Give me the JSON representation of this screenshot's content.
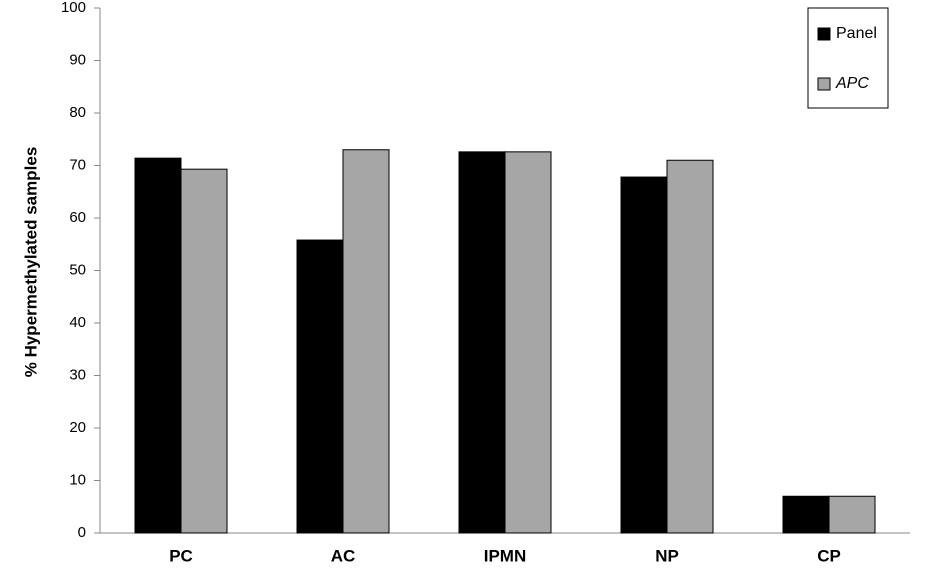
{
  "chart_data": {
    "type": "bar",
    "y_label": "% Hypermethylated  samples",
    "categories": [
      "PC",
      "AC",
      "IPMN",
      "NP",
      "CP"
    ],
    "series": [
      {
        "name": "Panel",
        "color": "#000000",
        "values": [
          71.4,
          55.8,
          72.6,
          67.8,
          7
        ]
      },
      {
        "name": "APC",
        "color": "#a6a6a6",
        "values": [
          69.3,
          73,
          72.6,
          71,
          7
        ]
      }
    ],
    "ylim": [
      0,
      100
    ],
    "yticks": [
      0,
      10,
      20,
      30,
      40,
      50,
      60,
      70,
      80,
      90,
      100
    ],
    "legend": "top-right",
    "grid": false
  }
}
